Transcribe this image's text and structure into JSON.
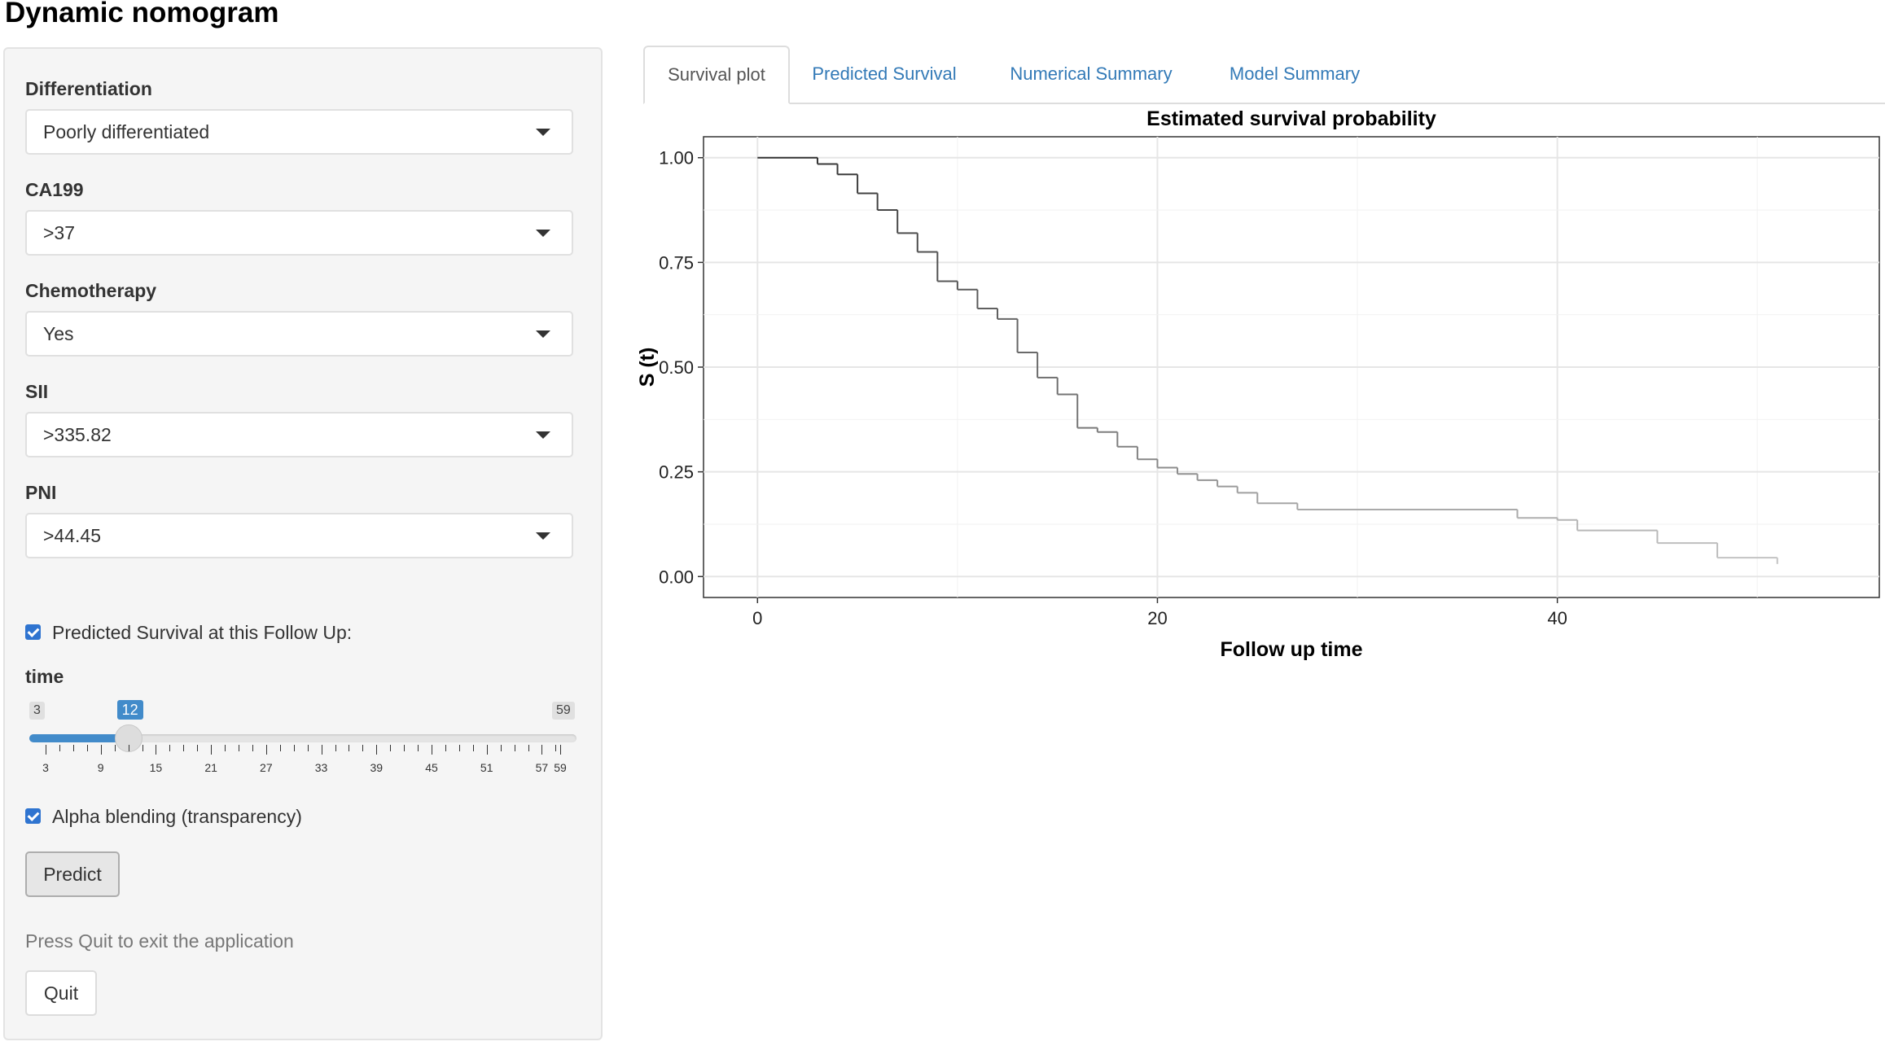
{
  "app": {
    "title": "Dynamic nomogram"
  },
  "sidebar": {
    "fields": [
      {
        "label": "Differentiation",
        "value": "Poorly differentiated"
      },
      {
        "label": "CA199",
        "value": ">37"
      },
      {
        "label": "Chemotherapy",
        "value": "Yes"
      },
      {
        "label": "SII",
        "value": ">335.82"
      },
      {
        "label": "PNI",
        "value": ">44.45"
      }
    ],
    "predicted_checkbox": {
      "label": "Predicted Survival at this Follow Up:",
      "checked": true
    },
    "slider": {
      "label": "time",
      "min": 3,
      "max": 59,
      "value": 12,
      "tick_labels": [
        "3",
        "9",
        "15",
        "21",
        "27",
        "33",
        "39",
        "45",
        "51",
        "57",
        "59"
      ]
    },
    "alpha_checkbox": {
      "label": "Alpha blending (transparency)",
      "checked": true
    },
    "predict_button": "Predict",
    "quit_note": "Press Quit to exit the application",
    "quit_button": "Quit"
  },
  "tabs": [
    {
      "label": "Survival plot",
      "active": true
    },
    {
      "label": "Predicted Survival",
      "active": false
    },
    {
      "label": "Numerical Summary",
      "active": false
    },
    {
      "label": "Model Summary",
      "active": false
    }
  ],
  "chart_data": {
    "type": "line",
    "step": true,
    "title": "Estimated survival probability",
    "xlabel": "Follow up time",
    "ylabel": "S (t)",
    "xlim": [
      -2.7,
      56.1
    ],
    "ylim": [
      -0.05,
      1.05
    ],
    "x_ticks": [
      0,
      20,
      40
    ],
    "y_ticks": [
      0,
      0.25,
      0.5,
      0.75,
      1.0
    ],
    "y_tick_labels": [
      "0.00",
      "0.25",
      "0.50",
      "0.75",
      "1.00"
    ],
    "grid": true,
    "series": [
      {
        "x": [
          0,
          3,
          4,
          5,
          6,
          7,
          8,
          9,
          10,
          11,
          12,
          13,
          14,
          15,
          16,
          17,
          18,
          19,
          20,
          21,
          22,
          23,
          24,
          25,
          27,
          38,
          40,
          41,
          45,
          48,
          51
        ],
        "y": [
          1.0,
          0.985,
          0.96,
          0.915,
          0.875,
          0.82,
          0.775,
          0.705,
          0.685,
          0.64,
          0.615,
          0.535,
          0.475,
          0.435,
          0.355,
          0.345,
          0.31,
          0.28,
          0.26,
          0.245,
          0.23,
          0.215,
          0.2,
          0.175,
          0.16,
          0.14,
          0.135,
          0.11,
          0.08,
          0.045,
          0.03
        ]
      }
    ]
  },
  "colors": {
    "accent": "#428bca",
    "link": "#337ab7",
    "checkbox": "#2f74d0",
    "curve_start": "#333333",
    "curve_end": "#c8c8c8"
  }
}
